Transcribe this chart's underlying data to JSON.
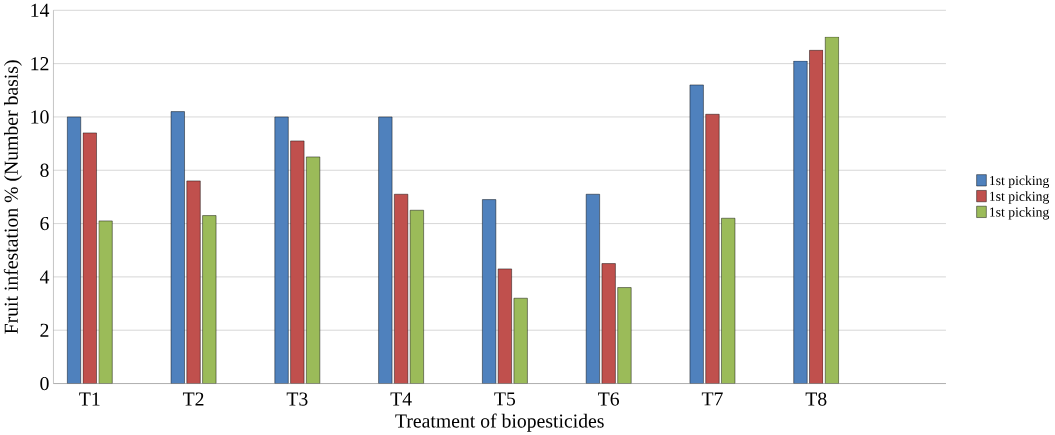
{
  "chart_data": {
    "type": "bar",
    "xlabel": "Treatment of biopesticides",
    "ylabel": "Fruit infestation % (Number basis)",
    "categories": [
      "T1",
      "T2",
      "T3",
      "T4",
      "T5",
      "T6",
      "T7",
      "T8"
    ],
    "series": [
      {
        "name": "1st  picking",
        "color": "#4f81bd",
        "values": [
          10,
          10.2,
          10,
          10,
          6.9,
          7.1,
          11.2,
          12.1
        ]
      },
      {
        "name": "1st  picking",
        "color": "#c0504d",
        "values": [
          9.4,
          7.6,
          9.1,
          7.1,
          4.3,
          4.5,
          10.1,
          12.5
        ]
      },
      {
        "name": "1st  picking",
        "color": "#9bbb59",
        "values": [
          6.1,
          6.3,
          8.5,
          6.5,
          3.2,
          3.6,
          6.2,
          13.0
        ]
      }
    ],
    "ylim": [
      0,
      14
    ],
    "yticks": [
      0,
      2,
      4,
      6,
      8,
      10,
      12,
      14
    ],
    "grid": "y",
    "legend": "right"
  }
}
